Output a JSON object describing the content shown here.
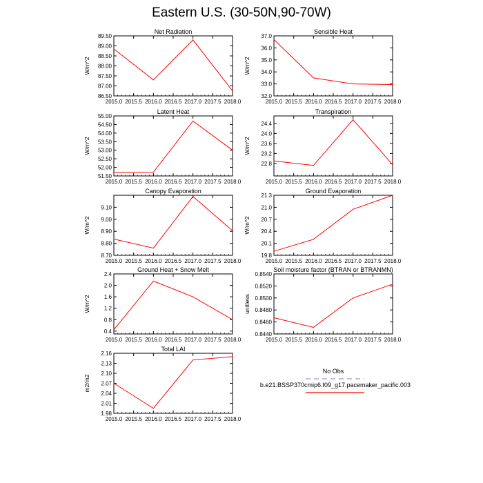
{
  "title": "Eastern U.S. (30-50N,90-70W)",
  "colors": {
    "model": "#ff0000",
    "obs": "#b0a8d8",
    "axis": "#000000"
  },
  "legend": {
    "obs_label": "No Obs",
    "model_label": "b.e21.BSSP370cmip6.f09_g17.pacemaker_pacific.003"
  },
  "chart_data": [
    {
      "type": "line",
      "title": "Net Radiation",
      "ylabel": "W/m^2",
      "x": [
        2015,
        2016,
        2017,
        2018
      ],
      "values": [
        88.85,
        87.3,
        89.3,
        86.75
      ],
      "xlim": [
        2015,
        2018
      ],
      "ylim": [
        86.5,
        89.5
      ],
      "xticks": [
        "2015.0",
        "2015.5",
        "2016.0",
        "2016.5",
        "2017.0",
        "2017.5",
        "2018.0"
      ],
      "yticks": [
        "86.50",
        "87.00",
        "87.50",
        "88.00",
        "88.50",
        "89.00",
        "89.50"
      ]
    },
    {
      "type": "line",
      "title": "Sensible Heat",
      "ylabel": "W/m^2",
      "x": [
        2015,
        2016,
        2017,
        2018
      ],
      "values": [
        36.7,
        33.5,
        33.0,
        32.95
      ],
      "xlim": [
        2015,
        2018
      ],
      "ylim": [
        32.0,
        37.0
      ],
      "xticks": [
        "2015.0",
        "2015.5",
        "2016.0",
        "2016.5",
        "2017.0",
        "2017.5",
        "2018.0"
      ],
      "yticks": [
        "32.0",
        "33.0",
        "34.0",
        "35.0",
        "36.0",
        "37.0"
      ]
    },
    {
      "type": "line",
      "title": "Latent Heat",
      "ylabel": "W/m^2",
      "x": [
        2015,
        2016,
        2017,
        2018
      ],
      "values": [
        51.7,
        51.72,
        54.7,
        53.0
      ],
      "xlim": [
        2015,
        2018
      ],
      "ylim": [
        51.5,
        55.0
      ],
      "xticks": [
        "2015.0",
        "2015.5",
        "2016.0",
        "2016.5",
        "2017.0",
        "2017.5",
        "2018.0"
      ],
      "yticks": [
        "51.50",
        "52.00",
        "52.50",
        "53.00",
        "53.50",
        "54.00",
        "54.50",
        "55.00"
      ]
    },
    {
      "type": "line",
      "title": "Transpiration",
      "ylabel": "W/m^2",
      "x": [
        2015,
        2016,
        2017,
        2018
      ],
      "values": [
        22.9,
        22.72,
        24.55,
        22.75
      ],
      "xlim": [
        2015,
        2018
      ],
      "ylim": [
        22.3,
        24.7
      ],
      "xticks": [
        "2015.0",
        "2015.5",
        "2016.0",
        "2016.5",
        "2017.0",
        "2017.5",
        "2018.0"
      ],
      "yticks": [
        "22.8",
        "23.2",
        "23.6",
        "24.0",
        "24.4"
      ]
    },
    {
      "type": "line",
      "title": "Canopy Evaporation",
      "ylabel": "W/m^2",
      "x": [
        2015,
        2016,
        2017,
        2018
      ],
      "values": [
        8.835,
        8.76,
        9.19,
        8.905
      ],
      "xlim": [
        2015,
        2018
      ],
      "ylim": [
        8.7,
        9.2
      ],
      "xticks": [
        "2015.0",
        "2015.5",
        "2016.0",
        "2016.5",
        "2017.0",
        "2017.5",
        "2018.0"
      ],
      "yticks": [
        "8.70",
        "8.80",
        "8.90",
        "9.00",
        "9.10"
      ]
    },
    {
      "type": "line",
      "title": "Ground Evaporation",
      "ylabel": "W/m^2",
      "x": [
        2015,
        2016,
        2017,
        2018
      ],
      "values": [
        19.9,
        20.2,
        20.95,
        21.3
      ],
      "xlim": [
        2015,
        2018
      ],
      "ylim": [
        19.8,
        21.3
      ],
      "xticks": [
        "2015.0",
        "2015.5",
        "2016.0",
        "2016.5",
        "2017.0",
        "2017.5",
        "2018.0"
      ],
      "yticks": [
        "19.8",
        "20.1",
        "20.4",
        "20.7",
        "21.0",
        "21.3"
      ]
    },
    {
      "type": "line",
      "title": "Ground Heat + Snow Melt",
      "ylabel": "W/m^2",
      "x": [
        2015,
        2016,
        2017,
        2018
      ],
      "values": [
        0.45,
        2.15,
        1.6,
        0.8
      ],
      "xlim": [
        2015,
        2018
      ],
      "ylim": [
        0.3,
        2.4
      ],
      "xticks": [
        "2015.0",
        "2015.5",
        "2016.0",
        "2016.5",
        "2017.0",
        "2017.5",
        "2018.0"
      ],
      "yticks": [
        "0.4",
        "0.8",
        "1.2",
        "1.6",
        "2.0",
        "2.4"
      ]
    },
    {
      "type": "line",
      "title": "Soil moisture factor (BTRAN or BTRANMN)",
      "ylabel": "unitless",
      "x": [
        2015,
        2016,
        2017,
        2018
      ],
      "values": [
        0.8467,
        0.8451,
        0.85,
        0.8523
      ],
      "xlim": [
        2015,
        2018
      ],
      "ylim": [
        0.844,
        0.854
      ],
      "xticks": [
        "2015.0",
        "2015.5",
        "2016.0",
        "2016.5",
        "2017.0",
        "2017.5",
        "2018.0"
      ],
      "yticks": [
        "0.8440",
        "0.8460",
        "0.8480",
        "0.8500",
        "0.8520",
        "0.8540"
      ]
    },
    {
      "type": "line",
      "title": "Total LAI",
      "ylabel": "m2/m2",
      "x": [
        2015,
        2016,
        2017,
        2018
      ],
      "values": [
        2.07,
        1.995,
        2.14,
        2.15
      ],
      "xlim": [
        2015,
        2018
      ],
      "ylim": [
        1.98,
        2.16
      ],
      "xticks": [
        "2015.0",
        "2015.5",
        "2016.0",
        "2016.5",
        "2017.0",
        "2017.5",
        "2018.0"
      ],
      "yticks": [
        "1.98",
        "2.01",
        "2.04",
        "2.07",
        "2.10",
        "2.13",
        "2.16"
      ]
    }
  ]
}
